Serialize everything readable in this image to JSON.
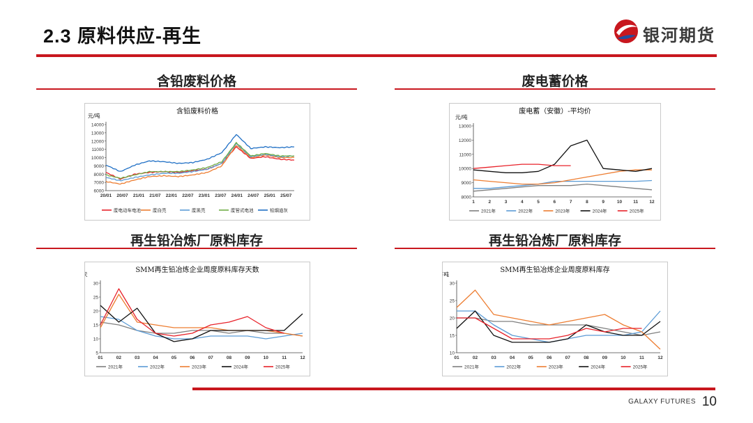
{
  "header": {
    "section_title": "2.3  原料供应-再生",
    "brand": "银河期货",
    "brand_color": "#c8171e"
  },
  "sections": [
    {
      "title": "含铅废料价格"
    },
    {
      "title": "废电蓄价格"
    },
    {
      "title": "再生铅冶炼厂原料库存"
    },
    {
      "title": "再生铅冶炼厂原料库存"
    }
  ],
  "footer": {
    "company": "GALAXY FUTURES",
    "page": "10"
  },
  "chart_data": [
    {
      "type": "line",
      "title": "含铅废料价格",
      "ylabel": "元/吨",
      "ylim": [
        6000,
        14000
      ],
      "yticks": [
        "14000",
        "13000",
        "12000",
        "11000",
        "10000",
        "9000",
        "8000",
        "7000",
        "6000"
      ],
      "xticks": [
        "20/01",
        "20/07",
        "21/01",
        "21/07",
        "22/01",
        "22/07",
        "23/01",
        "23/07",
        "24/01",
        "24/07",
        "25/01",
        "25/07"
      ],
      "x": [
        "20/01",
        "20/07",
        "21/01",
        "21/07",
        "22/01",
        "22/07",
        "23/01",
        "23/07",
        "24/01",
        "24/07",
        "24/09",
        "25/01",
        "25/07",
        "25/11"
      ],
      "series": [
        {
          "name": "废电动车电池",
          "color": "#e8222a",
          "values": [
            8200,
            7400,
            8000,
            8200,
            8300,
            8200,
            8400,
            8600,
            9300,
            11300,
            9900,
            10100,
            9800,
            9700
          ]
        },
        {
          "name": "废白壳",
          "color": "#ed7d31",
          "values": [
            7100,
            6800,
            7300,
            7700,
            7800,
            7700,
            7900,
            8200,
            9000,
            11500,
            10000,
            10300,
            10000,
            10000
          ]
        },
        {
          "name": "废黑壳",
          "color": "#5b9bd5",
          "values": [
            7600,
            7200,
            7600,
            7900,
            8100,
            8100,
            8300,
            8600,
            9300,
            11700,
            10100,
            10400,
            10100,
            10200
          ]
        },
        {
          "name": "废管式电池",
          "color": "#70ad47",
          "values": [
            7900,
            7500,
            7900,
            8300,
            8300,
            8300,
            8500,
            8800,
            9500,
            11800,
            10200,
            10500,
            10200,
            10200
          ]
        },
        {
          "name": "铅烟道灰",
          "color": "#1f6fc5",
          "values": [
            9100,
            8300,
            9100,
            9600,
            9500,
            9300,
            9400,
            9800,
            10600,
            12800,
            11100,
            11300,
            11200,
            11300
          ]
        }
      ]
    },
    {
      "type": "line",
      "title": "废电蓄（安徽）-平均价",
      "ylabel": "元/吨",
      "ylim": [
        8000,
        13000
      ],
      "yticks": [
        "13000",
        "12000",
        "11000",
        "10000",
        "9000",
        "8000"
      ],
      "x": [
        "1",
        "2",
        "3",
        "4",
        "5",
        "6",
        "7",
        "8",
        "9",
        "10",
        "11",
        "12"
      ],
      "series": [
        {
          "name": "2021年",
          "color": "#7f7f7f",
          "values": [
            8400,
            8500,
            8600,
            8700,
            8800,
            8800,
            8800,
            8900,
            8800,
            8700,
            8600,
            8500
          ]
        },
        {
          "name": "2022年",
          "color": "#5b9bd5",
          "values": [
            8600,
            8600,
            8700,
            8800,
            8900,
            9100,
            9100,
            9100,
            9100,
            9100,
            9100,
            9150
          ]
        },
        {
          "name": "2023年",
          "color": "#ed7d31",
          "values": [
            9200,
            9100,
            9000,
            8900,
            8900,
            9000,
            9200,
            9400,
            9600,
            9800,
            9900,
            9900
          ]
        },
        {
          "name": "2024年",
          "color": "#111111",
          "values": [
            9900,
            9800,
            9700,
            9700,
            9800,
            10300,
            11600,
            12000,
            10000,
            9900,
            9800,
            10000
          ]
        },
        {
          "name": "2025年",
          "color": "#e8222a",
          "values": [
            10000,
            10100,
            10200,
            10300,
            10300,
            10200,
            10200,
            null,
            null,
            null,
            null,
            null
          ]
        }
      ]
    },
    {
      "type": "line",
      "title": "SMM再生铅冶炼企业周度原料库存天数",
      "ylabel": "天",
      "ylim": [
        5,
        30
      ],
      "yticks": [
        "30",
        "25",
        "20",
        "15",
        "10",
        "5"
      ],
      "x": [
        "01",
        "02",
        "03",
        "04",
        "05",
        "06",
        "07",
        "08",
        "09",
        "10",
        "11",
        "12"
      ],
      "series": [
        {
          "name": "2021年",
          "color": "#7f7f7f",
          "values": [
            16,
            15,
            13,
            12,
            12,
            13,
            13,
            12,
            13,
            12,
            12,
            11
          ]
        },
        {
          "name": "2022年",
          "color": "#5b9bd5",
          "values": [
            18,
            17,
            13,
            11,
            10,
            10,
            11,
            11,
            11,
            10,
            11,
            12
          ]
        },
        {
          "name": "2023年",
          "color": "#ed7d31",
          "values": [
            14,
            26,
            16,
            15,
            14,
            14,
            14,
            13,
            13,
            13,
            12,
            11
          ]
        },
        {
          "name": "2024年",
          "color": "#111111",
          "values": [
            22,
            16,
            21,
            12,
            9,
            10,
            13,
            13,
            13,
            13,
            13,
            19
          ]
        },
        {
          "name": "2025年",
          "color": "#e8222a",
          "values": [
            15,
            28,
            17,
            12,
            11,
            12,
            15,
            16,
            18,
            14,
            12,
            null
          ]
        }
      ]
    },
    {
      "type": "line",
      "title": "SMM再生铅冶炼企业周度原料库存",
      "ylabel": "万吨",
      "ylim": [
        10,
        30
      ],
      "yticks": [
        "30",
        "25",
        "20",
        "15",
        "10"
      ],
      "x": [
        "01",
        "02",
        "03",
        "04",
        "05",
        "06",
        "07",
        "08",
        "09",
        "10",
        "11",
        "12"
      ],
      "series": [
        {
          "name": "2021年",
          "color": "#7f7f7f",
          "values": [
            20,
            20,
            19,
            19,
            18,
            18,
            18,
            18,
            17,
            16,
            15,
            16
          ]
        },
        {
          "name": "2022年",
          "color": "#5b9bd5",
          "values": [
            22,
            22,
            18,
            15,
            14,
            13,
            14,
            15,
            15,
            15,
            16,
            22
          ]
        },
        {
          "name": "2023年",
          "color": "#ed7d31",
          "values": [
            23,
            28,
            21,
            20,
            19,
            18,
            19,
            20,
            21,
            18,
            16,
            11
          ]
        },
        {
          "name": "2024年",
          "color": "#111111",
          "values": [
            17,
            22,
            15,
            13,
            13,
            13,
            14,
            18,
            16,
            15,
            15,
            19
          ]
        },
        {
          "name": "2025年",
          "color": "#e8222a",
          "values": [
            20,
            20,
            17,
            14,
            14,
            14,
            15,
            17,
            16,
            17,
            17,
            null
          ]
        }
      ]
    }
  ]
}
